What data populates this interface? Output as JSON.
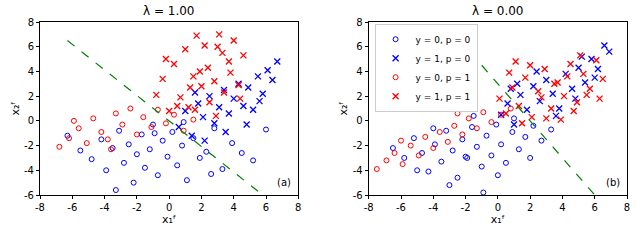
{
  "chart_data": [
    {
      "type": "scatter",
      "title": "λ = 1.00",
      "x_label": "x₁ᶠ",
      "y_label": "x₂ᶠ",
      "annotation": "(a)",
      "xlim": [
        -8,
        8
      ],
      "xticks": [
        -8,
        -6,
        -4,
        -2,
        0,
        2,
        4,
        6,
        8
      ],
      "ylim": [
        -6,
        8
      ],
      "yticks": [
        -6,
        -4,
        -2,
        0,
        2,
        4,
        6,
        8
      ],
      "grid": false,
      "series": [
        {
          "color": "#0000ff",
          "marker": "circle-open",
          "x": [
            -5.5,
            -4.8,
            -4.2,
            -3.9,
            -3.5,
            -3.1,
            -2.8,
            -2.5,
            -2.2,
            -2.0,
            -1.7,
            -1.5,
            -1.2,
            -1.0,
            -0.7,
            -0.4,
            -0.1,
            0.2,
            0.5,
            0.8,
            1.1,
            1.5,
            1.9,
            2.3,
            2.8,
            3.3,
            3.9,
            4.5,
            5.2,
            6.0,
            -6.3,
            -3.3,
            -0.9,
            0.9,
            2.6
          ],
          "values": [
            -2.4,
            -3.1,
            -1.5,
            -4.0,
            -2.2,
            -0.8,
            -3.4,
            -1.9,
            -5.0,
            -2.7,
            -1.1,
            -3.8,
            -2.3,
            -0.3,
            -4.4,
            -1.6,
            -2.9,
            -0.9,
            -3.6,
            -2.0,
            -4.8,
            -1.4,
            -3.0,
            -2.5,
            -0.6,
            -3.9,
            -1.8,
            -2.6,
            -3.2,
            -0.7,
            -1.2,
            -5.6,
            -1.0,
            -0.1,
            -4.3
          ]
        },
        {
          "color": "#0000ff",
          "marker": "x",
          "x": [
            0.6,
            1.0,
            1.4,
            1.8,
            2.1,
            2.5,
            2.8,
            3.1,
            3.4,
            3.7,
            4.0,
            4.3,
            4.6,
            4.9,
            5.2,
            5.5,
            5.8,
            6.1,
            6.4,
            6.7,
            2.2,
            3.5,
            4.8,
            5.6,
            1.6
          ],
          "values": [
            -0.5,
            0.8,
            -1.2,
            1.4,
            0.3,
            2.0,
            -0.2,
            1.1,
            2.5,
            0.6,
            1.8,
            3.0,
            1.2,
            2.7,
            0.9,
            3.6,
            2.2,
            4.1,
            3.3,
            4.8,
            -1.6,
            -0.9,
            -0.3,
            1.6,
            2.3
          ]
        },
        {
          "color": "#ff0000",
          "marker": "circle-open",
          "x": [
            -6.8,
            -6.2,
            -5.6,
            -5.1,
            -4.7,
            -4.2,
            -3.8,
            -3.3,
            -2.9,
            -2.4,
            -2.0,
            -1.6,
            -1.1,
            -0.7,
            -0.2,
            0.3,
            0.9,
            1.5,
            -5.9,
            -3.6
          ],
          "values": [
            -2.1,
            -1.4,
            -0.6,
            -1.8,
            0.2,
            -0.9,
            -1.5,
            0.6,
            -0.3,
            1.0,
            -1.1,
            0.3,
            -0.5,
            0.9,
            -0.2,
            0.5,
            -0.8,
            0.1,
            0.0,
            -2.3
          ]
        },
        {
          "color": "#ff0000",
          "marker": "x",
          "x": [
            -0.8,
            -0.4,
            0.0,
            0.3,
            0.7,
            1.0,
            1.3,
            1.6,
            1.9,
            2.2,
            2.5,
            2.8,
            3.1,
            3.4,
            3.7,
            4.0,
            4.3,
            4.6,
            1.2,
            2.0,
            2.9,
            3.8,
            0.5,
            1.7,
            3.3,
            4.4,
            -0.2,
            2.4,
            3.0,
            1.5
          ],
          "values": [
            2.1,
            3.4,
            0.8,
            4.6,
            1.9,
            5.8,
            2.7,
            0.9,
            4.0,
            6.1,
            1.5,
            3.2,
            7.0,
            2.3,
            4.8,
            6.5,
            2.9,
            5.3,
            1.1,
            2.8,
            0.4,
            3.9,
            1.2,
            6.9,
            5.5,
            1.8,
            5.0,
            4.3,
            6.0,
            3.6
          ]
        },
        {
          "type": "line",
          "color": "#008000",
          "line_style": "dashed",
          "x": [
            -6.3,
            5.8
          ],
          "values": [
            6.5,
            -6.0
          ]
        }
      ]
    },
    {
      "type": "scatter",
      "title": "λ = 0.00",
      "x_label": "x₁ᶠ",
      "y_label": "x₂ᶠ",
      "annotation": "(b)",
      "xlim": [
        -8,
        8
      ],
      "xticks": [
        -8,
        -6,
        -4,
        -2,
        0,
        2,
        4,
        6,
        8
      ],
      "ylim": [
        -6,
        8
      ],
      "yticks": [
        -6,
        -4,
        -2,
        0,
        2,
        4,
        6,
        8
      ],
      "grid": false,
      "legend": "upper left",
      "series": [
        {
          "name": "y = 0, p = 0",
          "color": "#0000ff",
          "marker": "circle-open",
          "x": [
            -6.5,
            -5.8,
            -5.2,
            -4.7,
            -4.3,
            -3.9,
            -3.5,
            -3.2,
            -2.8,
            -2.5,
            -2.2,
            -1.9,
            -1.6,
            -1.3,
            -1.0,
            -0.7,
            -0.4,
            -0.1,
            0.2,
            0.5,
            0.9,
            1.3,
            1.7,
            2.2,
            2.7,
            3.3,
            -3.0,
            -1.5,
            0.0,
            -2.0,
            -4.0,
            1.0,
            -0.9,
            -5.0,
            2.0
          ],
          "values": [
            -2.2,
            -3.0,
            -1.4,
            -2.6,
            -4.1,
            -1.9,
            -3.3,
            -0.8,
            -2.4,
            -4.6,
            -1.5,
            -3.0,
            -0.5,
            -2.1,
            -3.7,
            -1.2,
            -2.8,
            -0.3,
            -1.9,
            -3.4,
            -0.9,
            -2.3,
            -1.3,
            -0.4,
            -1.6,
            -0.7,
            -5.2,
            0.4,
            -4.4,
            -2.9,
            -0.6,
            0.2,
            -5.8,
            -4.0,
            -3.0
          ]
        },
        {
          "name": "y = 1, p = 0",
          "color": "#0000ff",
          "marker": "x",
          "x": [
            0.2,
            0.6,
            1.0,
            1.4,
            1.8,
            2.2,
            2.6,
            3.0,
            3.4,
            3.8,
            4.2,
            4.6,
            5.0,
            5.4,
            5.8,
            6.2,
            6.6,
            6.9,
            1.2,
            2.4,
            3.6,
            4.8,
            6.0,
            0.8,
            5.2
          ],
          "values": [
            0.5,
            1.4,
            -0.3,
            2.1,
            0.9,
            2.8,
            1.6,
            3.3,
            2.2,
            1.0,
            3.8,
            2.6,
            4.3,
            3.1,
            5.0,
            4.2,
            6.1,
            5.6,
            3.0,
            4.0,
            0.4,
            1.8,
            3.5,
            2.6,
            5.2
          ]
        },
        {
          "name": "y = 0, p = 1",
          "color": "#ff0000",
          "marker": "circle-open",
          "x": [
            -7.5,
            -6.9,
            -6.4,
            -5.9,
            -5.4,
            -4.9,
            -4.5,
            -4.0,
            -3.6,
            -3.1,
            -2.7,
            -2.2,
            -1.8,
            -1.3,
            -0.9,
            -0.4,
            0.2,
            0.8,
            -6.0,
            -2.5
          ],
          "values": [
            -3.9,
            -3.2,
            -2.6,
            -3.5,
            -2.0,
            -2.8,
            -1.3,
            -2.2,
            -0.9,
            -1.7,
            -0.4,
            -1.1,
            0.2,
            -0.6,
            0.7,
            -0.1,
            0.5,
            1.0,
            -1.6,
            0.6
          ]
        },
        {
          "name": "y = 1, p = 1",
          "color": "#ff0000",
          "marker": "x",
          "x": [
            0.1,
            0.5,
            0.9,
            1.3,
            1.7,
            2.1,
            2.5,
            2.9,
            3.3,
            3.7,
            4.1,
            4.5,
            4.9,
            5.3,
            5.7,
            6.1,
            6.5,
            1.5,
            2.7,
            3.9,
            5.1,
            6.3,
            0.7,
            2.0,
            3.5,
            4.7,
            5.5,
            1.1,
            3.0,
            4.3
          ],
          "values": [
            1.8,
            0.6,
            2.7,
            1.2,
            3.5,
            0.3,
            2.4,
            4.2,
            1.0,
            3.1,
            2.0,
            4.6,
            1.5,
            3.8,
            2.6,
            4.9,
            3.4,
            -0.2,
            1.9,
            0.1,
            5.3,
            1.8,
            3.9,
            4.5,
            3.0,
            0.8,
            2.1,
            4.8,
            0.2,
            3.6
          ]
        },
        {
          "type": "line",
          "color": "#008000",
          "line_style": "dashed",
          "x": [
            -1.0,
            6.0
          ],
          "values": [
            4.5,
            -6.0
          ]
        }
      ]
    }
  ]
}
